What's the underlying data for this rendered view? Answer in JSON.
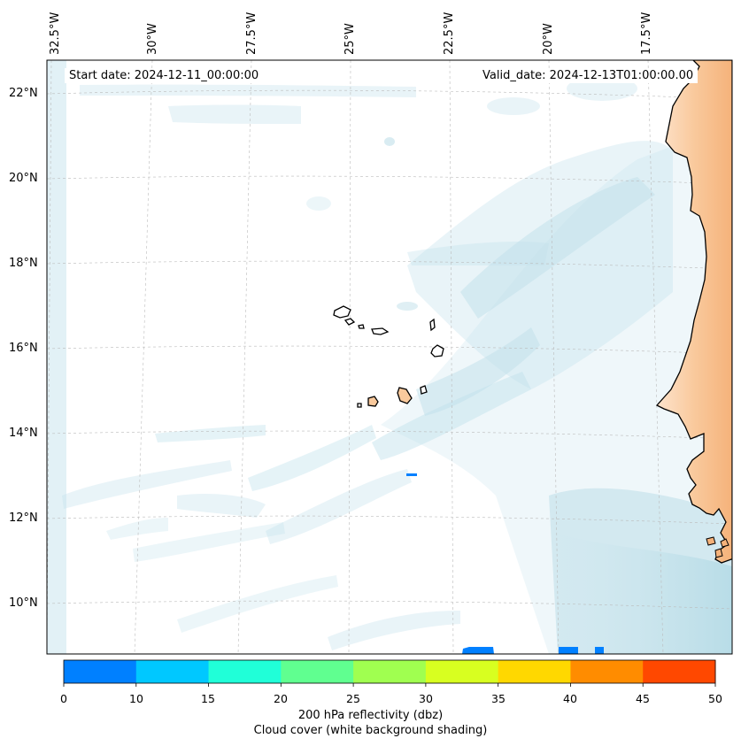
{
  "map": {
    "start_label": "Start date: 2024-12-11_00:00:00",
    "valid_label": "Valid_date: 2024-12-13T01:00:00.00",
    "lon_labels": [
      "32.5°W",
      "30°W",
      "27.5°W",
      "25°W",
      "22.5°W",
      "20°W",
      "17.5°W"
    ],
    "lat_labels": [
      "22°N",
      "20°N",
      "18°N",
      "16°N",
      "14°N",
      "12°N",
      "10°N"
    ]
  },
  "colorbar": {
    "colors": [
      "#0080ff",
      "#00c8ff",
      "#20ffd8",
      "#60ff90",
      "#a0ff50",
      "#d8ff20",
      "#ffd800",
      "#ff8c00",
      "#ff4800"
    ],
    "ticks": [
      "0",
      "10",
      "15",
      "20",
      "25",
      "30",
      "35",
      "40",
      "45",
      "50"
    ],
    "title": "200 hPa reflectivity (dbz)",
    "subtitle": "Cloud cover (white background shading)"
  },
  "colors": {
    "land": "#f9c99c",
    "cloud": "#bfe0ea",
    "echo": "#0080ff"
  }
}
